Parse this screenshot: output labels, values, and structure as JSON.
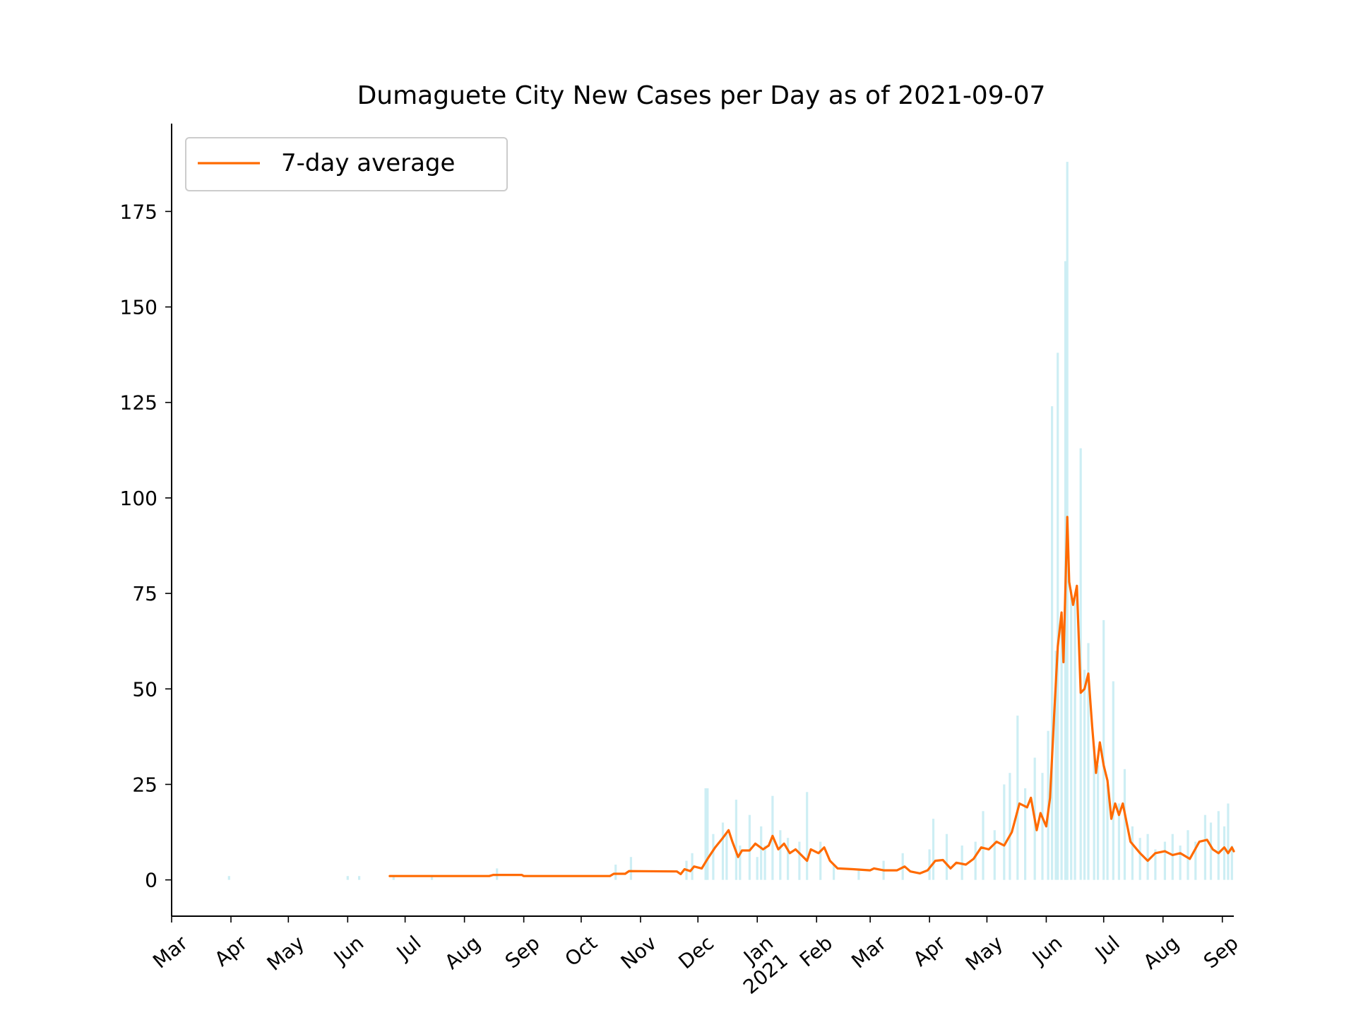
{
  "chart_data": {
    "type": "bar+line",
    "title": "Dumaguete City New Cases per Day as of 2021-09-07",
    "xlabel": "",
    "ylabel": "",
    "x_range": [
      "2020-03-01",
      "2021-09-07"
    ],
    "ylim": [
      -9.5,
      198
    ],
    "yticks": [
      0,
      25,
      50,
      75,
      100,
      125,
      150,
      175
    ],
    "xticks": [
      {
        "date": "2020-03-01",
        "label": "Mar"
      },
      {
        "date": "2020-04-01",
        "label": "Apr"
      },
      {
        "date": "2020-05-01",
        "label": "May"
      },
      {
        "date": "2020-06-01",
        "label": "Jun"
      },
      {
        "date": "2020-07-01",
        "label": "Jul"
      },
      {
        "date": "2020-08-01",
        "label": "Aug"
      },
      {
        "date": "2020-09-01",
        "label": "Sep"
      },
      {
        "date": "2020-10-01",
        "label": "Oct"
      },
      {
        "date": "2020-11-01",
        "label": "Nov"
      },
      {
        "date": "2020-12-01",
        "label": "Dec"
      },
      {
        "date": "2021-01-01",
        "label": "Jan\n2021"
      },
      {
        "date": "2021-02-01",
        "label": "Feb"
      },
      {
        "date": "2021-03-01",
        "label": "Mar"
      },
      {
        "date": "2021-04-01",
        "label": "Apr"
      },
      {
        "date": "2021-05-01",
        "label": "May"
      },
      {
        "date": "2021-06-01",
        "label": "Jun"
      },
      {
        "date": "2021-07-01",
        "label": "Jul"
      },
      {
        "date": "2021-08-01",
        "label": "Aug"
      },
      {
        "date": "2021-09-01",
        "label": "Sep"
      }
    ],
    "grid": false,
    "legend": {
      "placement": "upper-left",
      "entries": [
        "7-day average"
      ]
    },
    "colors": {
      "bars": "#cdeef4",
      "line": "#ff6a00"
    },
    "series": [
      {
        "name": "new cases per day",
        "kind": "bar",
        "points": [
          [
            "2020-03-31",
            1
          ],
          [
            "2020-06-01",
            1
          ],
          [
            "2020-06-07",
            1
          ],
          [
            "2020-06-25",
            1
          ],
          [
            "2020-07-15",
            1
          ],
          [
            "2020-08-18",
            3
          ],
          [
            "2020-10-19",
            4
          ],
          [
            "2020-10-27",
            6
          ],
          [
            "2020-11-25",
            5
          ],
          [
            "2020-11-28",
            7
          ],
          [
            "2020-12-05",
            24
          ],
          [
            "2020-12-06",
            24
          ],
          [
            "2020-12-09",
            12
          ],
          [
            "2020-12-14",
            15
          ],
          [
            "2020-12-16",
            12
          ],
          [
            "2020-12-21",
            21
          ],
          [
            "2020-12-23",
            9
          ],
          [
            "2020-12-28",
            17
          ],
          [
            "2021-01-01",
            6
          ],
          [
            "2021-01-03",
            14
          ],
          [
            "2021-01-05",
            9
          ],
          [
            "2021-01-09",
            22
          ],
          [
            "2021-01-13",
            13
          ],
          [
            "2021-01-17",
            11
          ],
          [
            "2021-01-23",
            10
          ],
          [
            "2021-01-27",
            23
          ],
          [
            "2021-02-03",
            10
          ],
          [
            "2021-02-10",
            4
          ],
          [
            "2021-02-23",
            3
          ],
          [
            "2021-03-08",
            5
          ],
          [
            "2021-03-18",
            7
          ],
          [
            "2021-04-01",
            8
          ],
          [
            "2021-04-03",
            16
          ],
          [
            "2021-04-10",
            12
          ],
          [
            "2021-04-18",
            9
          ],
          [
            "2021-04-25",
            10
          ],
          [
            "2021-04-29",
            18
          ],
          [
            "2021-05-05",
            13
          ],
          [
            "2021-05-10",
            25
          ],
          [
            "2021-05-13",
            28
          ],
          [
            "2021-05-17",
            43
          ],
          [
            "2021-05-21",
            24
          ],
          [
            "2021-05-26",
            32
          ],
          [
            "2021-05-30",
            28
          ],
          [
            "2021-06-02",
            39
          ],
          [
            "2021-06-04",
            124
          ],
          [
            "2021-06-06",
            60
          ],
          [
            "2021-06-07",
            138
          ],
          [
            "2021-06-09",
            66
          ],
          [
            "2021-06-11",
            162
          ],
          [
            "2021-06-12",
            188
          ],
          [
            "2021-06-14",
            76
          ],
          [
            "2021-06-16",
            74
          ],
          [
            "2021-06-19",
            113
          ],
          [
            "2021-06-21",
            55
          ],
          [
            "2021-06-23",
            62
          ],
          [
            "2021-06-26",
            35
          ],
          [
            "2021-06-28",
            30
          ],
          [
            "2021-07-01",
            68
          ],
          [
            "2021-07-03",
            25
          ],
          [
            "2021-07-06",
            52
          ],
          [
            "2021-07-09",
            20
          ],
          [
            "2021-07-12",
            29
          ],
          [
            "2021-07-16",
            14
          ],
          [
            "2021-07-20",
            11
          ],
          [
            "2021-07-24",
            12
          ],
          [
            "2021-07-28",
            8
          ],
          [
            "2021-08-02",
            10
          ],
          [
            "2021-08-06",
            12
          ],
          [
            "2021-08-10",
            9
          ],
          [
            "2021-08-14",
            13
          ],
          [
            "2021-08-18",
            10
          ],
          [
            "2021-08-23",
            17
          ],
          [
            "2021-08-26",
            15
          ],
          [
            "2021-08-30",
            18
          ],
          [
            "2021-09-02",
            14
          ],
          [
            "2021-09-04",
            20
          ],
          [
            "2021-09-06",
            9
          ]
        ]
      },
      {
        "name": "7-day average",
        "kind": "line",
        "points": [
          [
            "2020-06-23",
            1.0
          ],
          [
            "2020-08-14",
            1.0
          ],
          [
            "2020-08-16",
            1.3
          ],
          [
            "2020-08-31",
            1.3
          ],
          [
            "2020-09-01",
            1.0
          ],
          [
            "2020-10-16",
            1.0
          ],
          [
            "2020-10-18",
            1.6
          ],
          [
            "2020-10-24",
            1.6
          ],
          [
            "2020-10-26",
            2.3
          ],
          [
            "2020-11-20",
            2.2
          ],
          [
            "2020-11-22",
            1.5
          ],
          [
            "2020-11-24",
            2.8
          ],
          [
            "2020-11-27",
            2.3
          ],
          [
            "2020-11-29",
            3.5
          ],
          [
            "2020-12-03",
            3.0
          ],
          [
            "2020-12-06",
            5.5
          ],
          [
            "2020-12-10",
            8.5
          ],
          [
            "2020-12-14",
            11.0
          ],
          [
            "2020-12-17",
            13.0
          ],
          [
            "2020-12-19",
            10.0
          ],
          [
            "2020-12-22",
            6.0
          ],
          [
            "2020-12-24",
            7.7
          ],
          [
            "2020-12-28",
            7.7
          ],
          [
            "2020-12-31",
            9.5
          ],
          [
            "2021-01-04",
            8.0
          ],
          [
            "2021-01-07",
            9.0
          ],
          [
            "2021-01-09",
            11.5
          ],
          [
            "2021-01-12",
            8.0
          ],
          [
            "2021-01-15",
            9.5
          ],
          [
            "2021-01-18",
            7.0
          ],
          [
            "2021-01-21",
            8.0
          ],
          [
            "2021-01-24",
            6.5
          ],
          [
            "2021-01-27",
            5.0
          ],
          [
            "2021-01-29",
            8.0
          ],
          [
            "2021-02-02",
            7.0
          ],
          [
            "2021-02-05",
            8.5
          ],
          [
            "2021-02-08",
            5.0
          ],
          [
            "2021-02-12",
            3.0
          ],
          [
            "2021-02-20",
            2.8
          ],
          [
            "2021-03-01",
            2.5
          ],
          [
            "2021-03-03",
            3.0
          ],
          [
            "2021-03-08",
            2.5
          ],
          [
            "2021-03-15",
            2.5
          ],
          [
            "2021-03-19",
            3.5
          ],
          [
            "2021-03-22",
            2.2
          ],
          [
            "2021-03-27",
            1.7
          ],
          [
            "2021-03-31",
            2.5
          ],
          [
            "2021-04-04",
            5.0
          ],
          [
            "2021-04-08",
            5.2
          ],
          [
            "2021-04-12",
            3.0
          ],
          [
            "2021-04-15",
            4.5
          ],
          [
            "2021-04-20",
            4.0
          ],
          [
            "2021-04-24",
            5.5
          ],
          [
            "2021-04-28",
            8.5
          ],
          [
            "2021-05-02",
            8.0
          ],
          [
            "2021-05-06",
            10.0
          ],
          [
            "2021-05-10",
            9.0
          ],
          [
            "2021-05-14",
            12.5
          ],
          [
            "2021-05-18",
            20.0
          ],
          [
            "2021-05-22",
            19.0
          ],
          [
            "2021-05-24",
            21.5
          ],
          [
            "2021-05-27",
            13.0
          ],
          [
            "2021-05-29",
            17.5
          ],
          [
            "2021-06-01",
            14.0
          ],
          [
            "2021-06-03",
            21.5
          ],
          [
            "2021-06-05",
            42.0
          ],
          [
            "2021-06-07",
            61.0
          ],
          [
            "2021-06-09",
            70.0
          ],
          [
            "2021-06-10",
            57.0
          ],
          [
            "2021-06-12",
            95.0
          ],
          [
            "2021-06-13",
            78.0
          ],
          [
            "2021-06-15",
            72.0
          ],
          [
            "2021-06-17",
            77.0
          ],
          [
            "2021-06-19",
            49.0
          ],
          [
            "2021-06-21",
            50.0
          ],
          [
            "2021-06-23",
            54.0
          ],
          [
            "2021-06-25",
            40.0
          ],
          [
            "2021-06-27",
            28.0
          ],
          [
            "2021-06-29",
            36.0
          ],
          [
            "2021-07-01",
            30.0
          ],
          [
            "2021-07-03",
            26.0
          ],
          [
            "2021-07-05",
            16.0
          ],
          [
            "2021-07-07",
            20.0
          ],
          [
            "2021-07-09",
            17.0
          ],
          [
            "2021-07-11",
            20.0
          ],
          [
            "2021-07-15",
            10.0
          ],
          [
            "2021-07-20",
            7.0
          ],
          [
            "2021-07-24",
            5.0
          ],
          [
            "2021-07-28",
            7.0
          ],
          [
            "2021-08-02",
            7.5
          ],
          [
            "2021-08-06",
            6.5
          ],
          [
            "2021-08-10",
            7.0
          ],
          [
            "2021-08-15",
            5.5
          ],
          [
            "2021-08-20",
            10.0
          ],
          [
            "2021-08-24",
            10.5
          ],
          [
            "2021-08-27",
            8.0
          ],
          [
            "2021-08-30",
            7.0
          ],
          [
            "2021-09-02",
            8.5
          ],
          [
            "2021-09-04",
            7.0
          ],
          [
            "2021-09-06",
            8.5
          ],
          [
            "2021-09-07",
            7.5
          ]
        ]
      }
    ]
  }
}
